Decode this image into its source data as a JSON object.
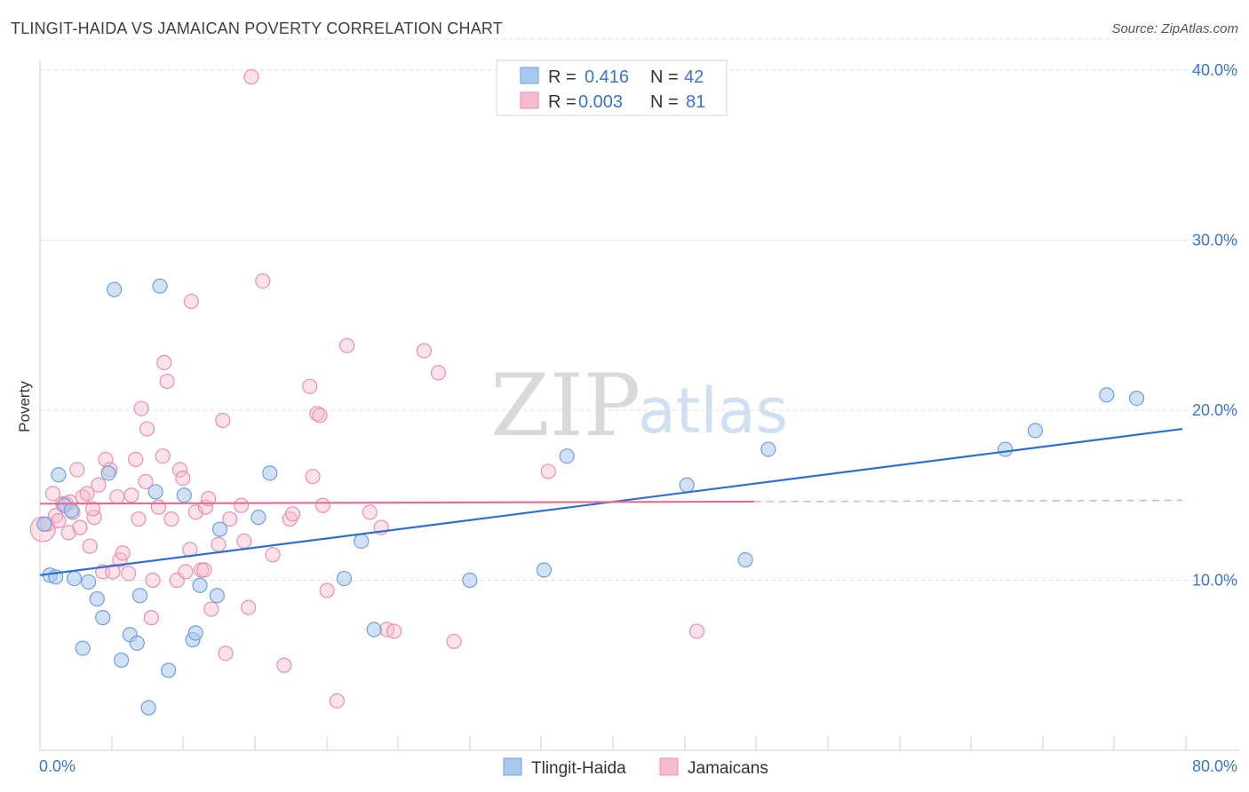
{
  "header": {
    "title": "TLINGIT-HAIDA VS JAMAICAN POVERTY CORRELATION CHART",
    "source": "Source: ZipAtlas.com"
  },
  "watermark": {
    "zip": "ZIP",
    "atlas": "atlas"
  },
  "legend": {
    "rows": [
      {
        "r_label": "R =",
        "r_value": "0.416",
        "n_label": "N =",
        "n_value": "42"
      },
      {
        "r_label": "R =",
        "r_value": "0.003",
        "n_label": "N =",
        "n_value": "81"
      }
    ]
  },
  "bottom_legend": {
    "series1": "Tlingit-Haida",
    "series2": "Jamaicans"
  },
  "colors": {
    "series1_fill": "#a9c8ef",
    "series1_stroke": "#6f9fdb",
    "series1_line": "#2e6fcf",
    "series2_fill": "#f6bccd",
    "series2_stroke": "#ea8fab",
    "series2_line": "#e86a90",
    "grid": "#dddddd",
    "axis_label": "#3a74c8"
  },
  "chart_data": {
    "type": "scatter",
    "title": "TLINGIT-HAIDA VS JAMAICAN POVERTY CORRELATION CHART",
    "xlabel": "",
    "ylabel": "Poverty",
    "xlim": [
      0,
      80
    ],
    "ylim": [
      0,
      42
    ],
    "x_tick_labels": [
      "0.0%",
      "80.0%"
    ],
    "y_ticks": [
      10,
      20,
      30,
      40
    ],
    "y_tick_labels": [
      "10.0%",
      "20.0%",
      "30.0%",
      "40.0%"
    ],
    "series": [
      {
        "name": "Tlingit-Haida",
        "r": 0.416,
        "n": 42,
        "trend": {
          "x": [
            0,
            80
          ],
          "y": [
            10.3,
            18.9
          ],
          "solid_to": 80
        },
        "points": [
          [
            0.3,
            13.3
          ],
          [
            0.7,
            10.3
          ],
          [
            1.1,
            10.2
          ],
          [
            1.3,
            16.2
          ],
          [
            1.7,
            14.4
          ],
          [
            2.2,
            14.1
          ],
          [
            2.4,
            10.1
          ],
          [
            3.0,
            6.0
          ],
          [
            3.4,
            9.9
          ],
          [
            4.0,
            8.9
          ],
          [
            4.4,
            7.8
          ],
          [
            4.8,
            16.3
          ],
          [
            5.2,
            27.1
          ],
          [
            5.7,
            5.3
          ],
          [
            6.3,
            6.8
          ],
          [
            6.8,
            6.3
          ],
          [
            7.0,
            9.1
          ],
          [
            7.6,
            2.5
          ],
          [
            8.1,
            15.2
          ],
          [
            8.4,
            27.3
          ],
          [
            9.0,
            4.7
          ],
          [
            10.1,
            15.0
          ],
          [
            10.7,
            6.5
          ],
          [
            10.9,
            6.9
          ],
          [
            11.2,
            9.7
          ],
          [
            12.4,
            9.1
          ],
          [
            12.6,
            13.0
          ],
          [
            15.3,
            13.7
          ],
          [
            16.1,
            16.3
          ],
          [
            21.3,
            10.1
          ],
          [
            22.5,
            12.3
          ],
          [
            23.4,
            7.1
          ],
          [
            30.1,
            10.0
          ],
          [
            35.3,
            10.6
          ],
          [
            36.9,
            17.3
          ],
          [
            45.3,
            15.6
          ],
          [
            49.4,
            11.2
          ],
          [
            51.0,
            17.7
          ],
          [
            67.6,
            17.7
          ],
          [
            69.7,
            18.8
          ],
          [
            74.7,
            20.9
          ],
          [
            76.8,
            20.7
          ]
        ]
      },
      {
        "name": "Jamaicans",
        "r": 0.003,
        "n": 81,
        "trend": {
          "x": [
            0,
            80
          ],
          "y": [
            14.5,
            14.7
          ],
          "solid_to": 50
        },
        "points": [
          [
            0.2,
            13.0
          ],
          [
            0.5,
            13.3
          ],
          [
            0.9,
            15.1
          ],
          [
            1.1,
            13.8
          ],
          [
            1.3,
            13.5
          ],
          [
            1.6,
            14.5
          ],
          [
            1.8,
            14.5
          ],
          [
            2.0,
            12.8
          ],
          [
            2.3,
            14.0
          ],
          [
            2.6,
            16.5
          ],
          [
            2.8,
            13.1
          ],
          [
            3.0,
            14.9
          ],
          [
            3.3,
            15.1
          ],
          [
            3.5,
            12.0
          ],
          [
            3.8,
            13.7
          ],
          [
            4.1,
            15.6
          ],
          [
            4.4,
            10.5
          ],
          [
            4.6,
            17.1
          ],
          [
            4.9,
            16.5
          ],
          [
            5.1,
            10.5
          ],
          [
            5.4,
            14.9
          ],
          [
            5.6,
            11.2
          ],
          [
            5.8,
            11.6
          ],
          [
            6.2,
            10.4
          ],
          [
            6.4,
            15.0
          ],
          [
            6.7,
            17.1
          ],
          [
            6.9,
            13.6
          ],
          [
            7.1,
            20.1
          ],
          [
            7.4,
            15.8
          ],
          [
            7.5,
            18.9
          ],
          [
            7.8,
            7.8
          ],
          [
            7.9,
            10.0
          ],
          [
            8.3,
            14.3
          ],
          [
            8.6,
            17.3
          ],
          [
            8.7,
            22.8
          ],
          [
            8.9,
            21.7
          ],
          [
            9.2,
            13.6
          ],
          [
            9.6,
            10.0
          ],
          [
            9.8,
            16.5
          ],
          [
            10.0,
            16.0
          ],
          [
            10.2,
            10.5
          ],
          [
            10.5,
            11.8
          ],
          [
            10.6,
            26.4
          ],
          [
            10.9,
            14.0
          ],
          [
            11.3,
            10.6
          ],
          [
            11.6,
            14.3
          ],
          [
            11.8,
            14.8
          ],
          [
            12.0,
            8.3
          ],
          [
            12.5,
            12.1
          ],
          [
            12.8,
            19.4
          ],
          [
            13.0,
            5.7
          ],
          [
            13.3,
            13.6
          ],
          [
            14.1,
            14.4
          ],
          [
            14.3,
            12.3
          ],
          [
            14.6,
            8.4
          ],
          [
            15.6,
            27.6
          ],
          [
            16.3,
            11.5
          ],
          [
            17.1,
            5.0
          ],
          [
            17.5,
            13.6
          ],
          [
            17.7,
            13.9
          ],
          [
            18.9,
            21.4
          ],
          [
            19.1,
            16.1
          ],
          [
            19.4,
            19.8
          ],
          [
            19.6,
            19.7
          ],
          [
            19.8,
            14.4
          ],
          [
            20.1,
            9.4
          ],
          [
            20.8,
            2.9
          ],
          [
            21.5,
            23.8
          ],
          [
            23.1,
            14.0
          ],
          [
            23.9,
            13.1
          ],
          [
            24.3,
            7.1
          ],
          [
            29.0,
            6.4
          ],
          [
            35.6,
            16.4
          ],
          [
            46.0,
            7.0
          ],
          [
            14.8,
            39.6
          ],
          [
            26.9,
            23.5
          ],
          [
            27.9,
            22.2
          ],
          [
            24.8,
            7.0
          ],
          [
            11.5,
            10.6
          ],
          [
            3.7,
            14.2
          ],
          [
            2.1,
            14.6
          ]
        ]
      }
    ]
  }
}
